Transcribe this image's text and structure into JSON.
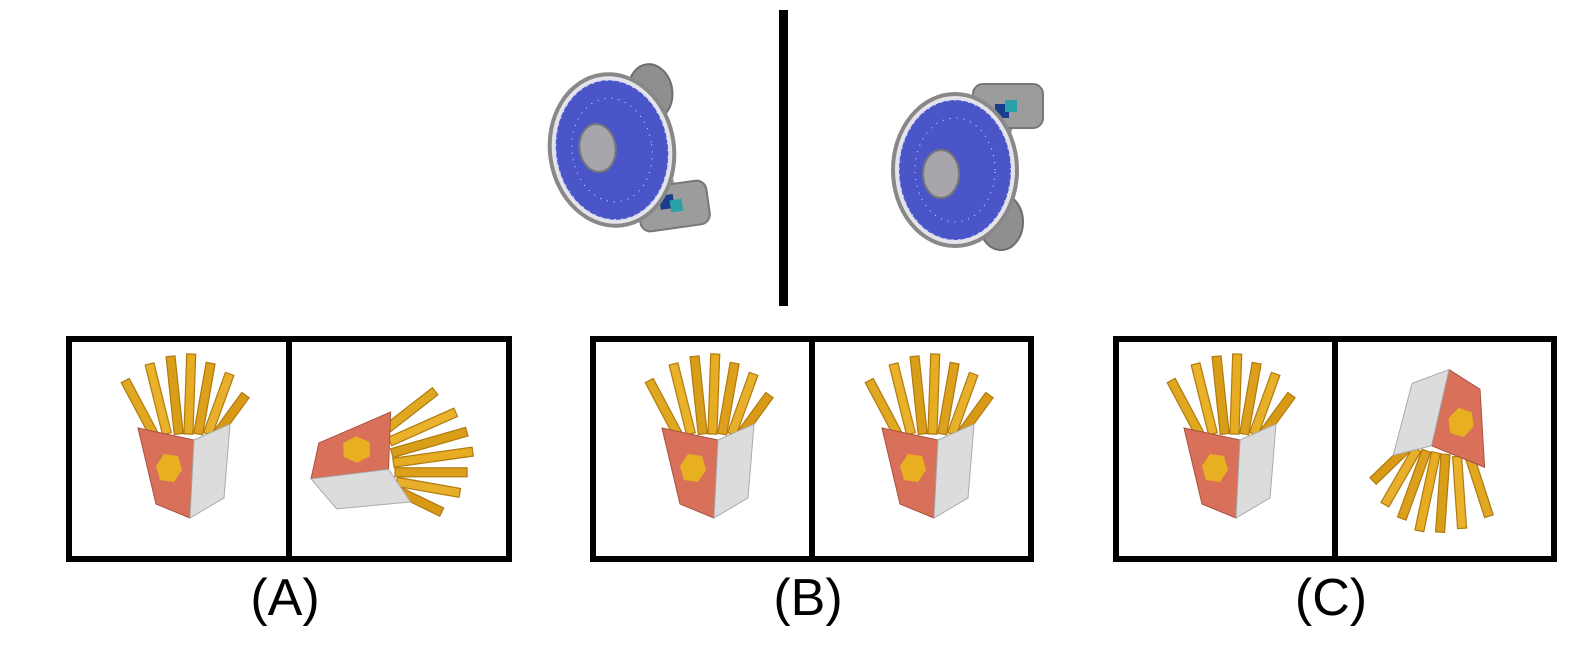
{
  "reference": {
    "left_object": "desk-fan",
    "right_object": "desk-fan-rotated"
  },
  "options": [
    {
      "label": "(A)",
      "left_object": "french-fries-upright",
      "right_object": "french-fries-tilted-left"
    },
    {
      "label": "(B)",
      "left_object": "french-fries-upright",
      "right_object": "french-fries-upright"
    },
    {
      "label": "(C)",
      "left_object": "french-fries-upright",
      "right_object": "french-fries-upside-down"
    }
  ],
  "colors": {
    "frame": "#000000",
    "fan_blade": "#4a55c8",
    "fan_body": "#8a8a8a",
    "fries": "#e0a820",
    "fries_box_front": "#d9705a",
    "fries_box_side": "#d8d8d8",
    "fries_logo": "#e8b020"
  }
}
